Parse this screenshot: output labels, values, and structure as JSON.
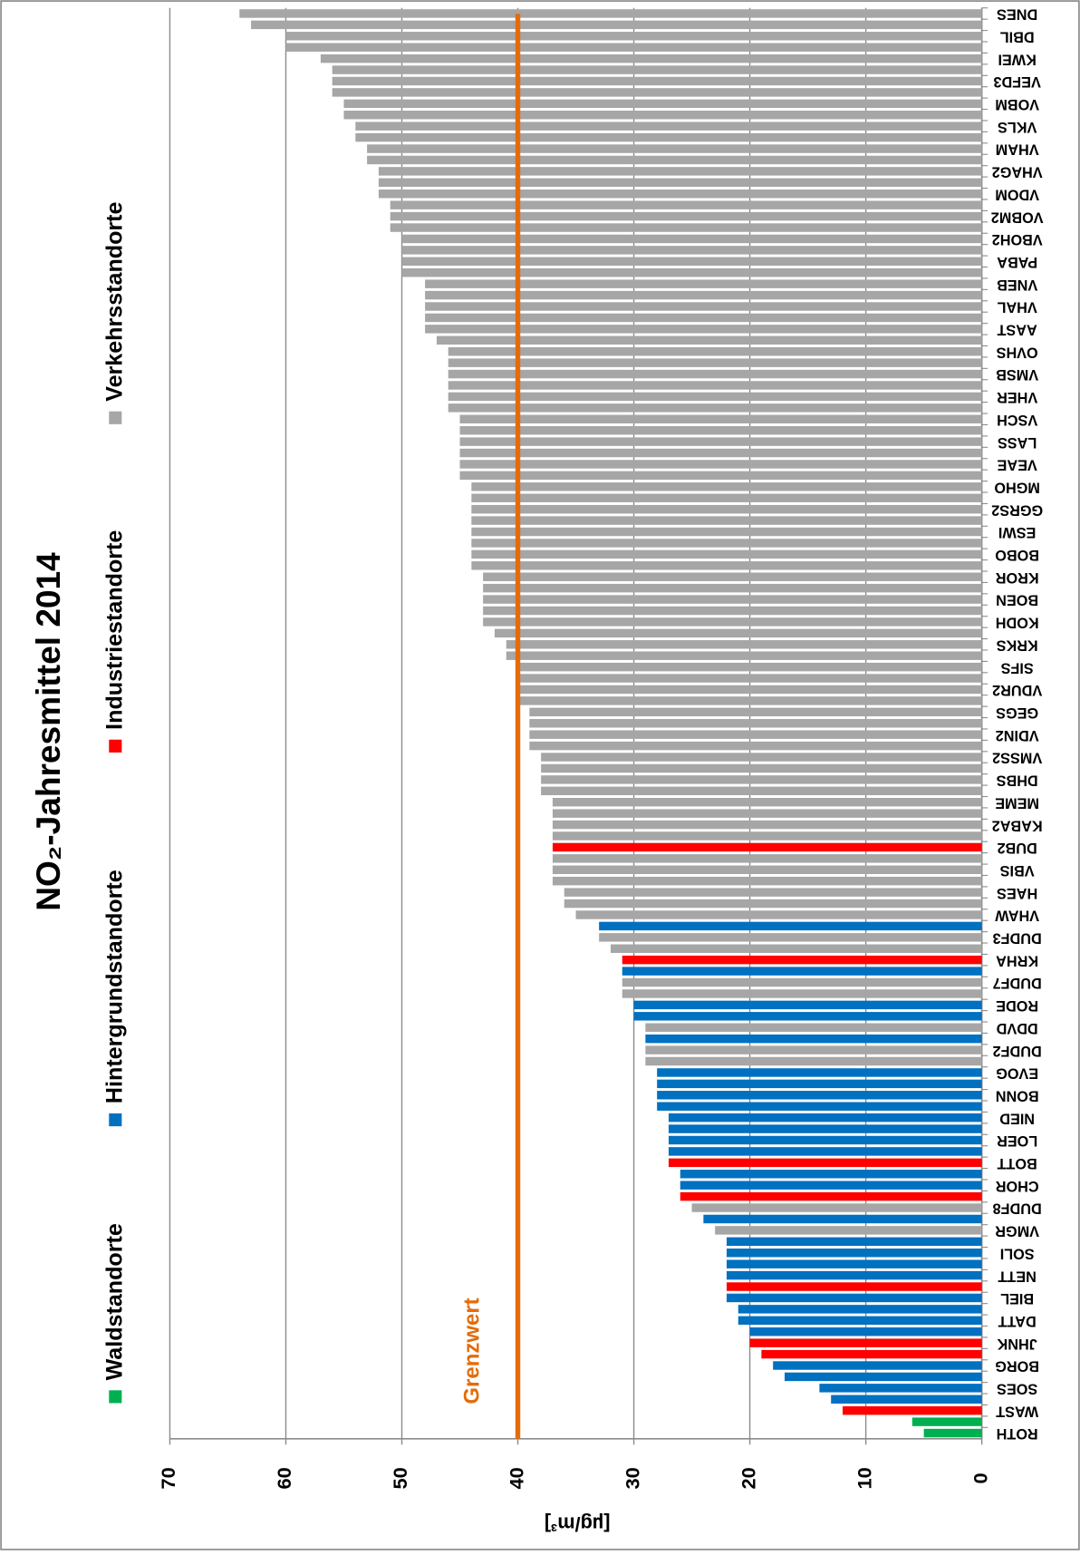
{
  "chart_data": {
    "type": "bar",
    "orientation": "rotated",
    "title": "NO₂-Jahresmittel 2014",
    "y_axis_label": "[µg/m³]",
    "categories": [
      "ROTH",
      null,
      "WAST",
      null,
      "SOES",
      null,
      "BORG",
      null,
      "JHNK",
      null,
      "DATT",
      null,
      "BIEL",
      null,
      "NETT",
      null,
      "SOLI",
      null,
      "VMGR",
      null,
      "DUDF8",
      null,
      "CHOR",
      null,
      "BOTT",
      null,
      "LOER",
      null,
      "NIED",
      null,
      "BONN",
      null,
      "EVOG",
      null,
      "DUDF2",
      null,
      "DDVD",
      null,
      "RODE",
      null,
      "DUDF7",
      null,
      "KRHA",
      null,
      "DUDF3",
      null,
      "VHAW",
      null,
      "HAES",
      null,
      "VBIS",
      null,
      "DUB2",
      null,
      "KABA2",
      null,
      "MEME",
      null,
      "DHBS",
      null,
      "VMSS2",
      null,
      "VDIN2",
      null,
      "GEGS",
      null,
      "VDUR2",
      null,
      "SIFS",
      null,
      "KRKS",
      null,
      "KODH",
      null,
      "BOEN",
      null,
      "KROR",
      null,
      "BOBO",
      null,
      "ESWI",
      null,
      "GGRS2",
      null,
      "MGHO",
      null,
      "VEAE",
      null,
      "LASS",
      null,
      "VSCH",
      null,
      "VHER",
      null,
      "VMSB",
      null,
      "OVHS",
      null,
      "AAST",
      null,
      "VHAL",
      null,
      "VNEB",
      null,
      "PABA",
      null,
      "VBOH2",
      null,
      "VOBM2",
      null,
      "VDOM",
      null,
      "VHAG2",
      null,
      "VHAM",
      null,
      "VKLS",
      null,
      "VOBM",
      null,
      "VEFD3",
      null,
      "KWEI",
      null,
      "DBIL",
      null,
      "DNES"
    ],
    "values": [
      5,
      6,
      12,
      13,
      14,
      17,
      18,
      19,
      20,
      20,
      21,
      21,
      22,
      22,
      22,
      22,
      22,
      22,
      23,
      24,
      25,
      26,
      26,
      26,
      27,
      27,
      27,
      27,
      27,
      28,
      28,
      28,
      28,
      29,
      29,
      29,
      29,
      30,
      30,
      31,
      31,
      31,
      31,
      32,
      33,
      33,
      35,
      36,
      36,
      37,
      37,
      37,
      37,
      37,
      37,
      37,
      37,
      38,
      38,
      38,
      38,
      39,
      39,
      39,
      39,
      40,
      40,
      40,
      40,
      41,
      41,
      42,
      43,
      43,
      43,
      43,
      43,
      44,
      44,
      44,
      44,
      44,
      44,
      44,
      44,
      45,
      45,
      45,
      45,
      45,
      45,
      46,
      46,
      46,
      46,
      46,
      46,
      47,
      48,
      48,
      48,
      48,
      48,
      50,
      50,
      50,
      50,
      51,
      51,
      51,
      52,
      52,
      52,
      53,
      53,
      54,
      54,
      55,
      55,
      56,
      56,
      56,
      57,
      60,
      60,
      63,
      64
    ],
    "bar_colors": [
      "#00b050",
      "#00b050",
      "#ff0000",
      "#0070c0",
      "#0070c0",
      "#0070c0",
      "#0070c0",
      "#ff0000",
      "#ff0000",
      "#0070c0",
      "#0070c0",
      "#0070c0",
      "#0070c0",
      "#ff0000",
      "#0070c0",
      "#0070c0",
      "#0070c0",
      "#0070c0",
      "#a6a6a6",
      "#0070c0",
      "#a6a6a6",
      "#ff0000",
      "#0070c0",
      "#0070c0",
      "#ff0000",
      "#0070c0",
      "#0070c0",
      "#0070c0",
      "#0070c0",
      "#0070c0",
      "#0070c0",
      "#0070c0",
      "#0070c0",
      "#a6a6a6",
      "#a6a6a6",
      "#0070c0",
      "#a6a6a6",
      "#0070c0",
      "#0070c0",
      "#a6a6a6",
      "#a6a6a6",
      "#0070c0",
      "#ff0000",
      "#a6a6a6",
      "#a6a6a6",
      "#0070c0",
      "#a6a6a6",
      "#a6a6a6",
      "#a6a6a6",
      "#a6a6a6",
      "#a6a6a6",
      "#a6a6a6",
      "#ff0000",
      "#a6a6a6",
      "#a6a6a6",
      "#a6a6a6",
      "#a6a6a6",
      "#a6a6a6",
      "#a6a6a6",
      "#a6a6a6",
      "#a6a6a6",
      "#a6a6a6",
      "#a6a6a6",
      "#a6a6a6",
      "#a6a6a6",
      "#a6a6a6",
      "#a6a6a6",
      "#a6a6a6",
      "#a6a6a6",
      "#a6a6a6",
      "#a6a6a6",
      "#a6a6a6",
      "#a6a6a6",
      "#a6a6a6",
      "#a6a6a6",
      "#a6a6a6",
      "#a6a6a6",
      "#a6a6a6",
      "#a6a6a6",
      "#a6a6a6",
      "#a6a6a6",
      "#a6a6a6",
      "#a6a6a6",
      "#a6a6a6",
      "#a6a6a6",
      "#a6a6a6",
      "#a6a6a6",
      "#a6a6a6",
      "#a6a6a6",
      "#a6a6a6",
      "#a6a6a6",
      "#a6a6a6",
      "#a6a6a6",
      "#a6a6a6",
      "#a6a6a6",
      "#a6a6a6",
      "#a6a6a6",
      "#a6a6a6",
      "#a6a6a6",
      "#a6a6a6",
      "#a6a6a6",
      "#a6a6a6",
      "#a6a6a6",
      "#a6a6a6",
      "#a6a6a6",
      "#a6a6a6",
      "#a6a6a6",
      "#a6a6a6",
      "#a6a6a6",
      "#a6a6a6",
      "#a6a6a6",
      "#a6a6a6",
      "#a6a6a6",
      "#a6a6a6",
      "#a6a6a6",
      "#a6a6a6",
      "#a6a6a6",
      "#a6a6a6",
      "#a6a6a6",
      "#a6a6a6",
      "#a6a6a6",
      "#a6a6a6",
      "#a6a6a6",
      "#a6a6a6",
      "#a6a6a6",
      "#a6a6a6",
      "#a6a6a6"
    ],
    "legend": [
      {
        "name": "Waldstandorte",
        "color": "#00b050"
      },
      {
        "name": "Hintergrundstandorte",
        "color": "#0070c0"
      },
      {
        "name": "Industriestandorte",
        "color": "#ff0000"
      },
      {
        "name": "Verkehrsstandorte",
        "color": "#a6a6a6"
      }
    ],
    "threshold": {
      "label": "Grenzwert",
      "value": 40,
      "color": "#e36c0a"
    },
    "ylim": [
      0,
      70
    ],
    "yticks": [
      0,
      10,
      20,
      30,
      40,
      50,
      60,
      70
    ],
    "grid": true
  }
}
